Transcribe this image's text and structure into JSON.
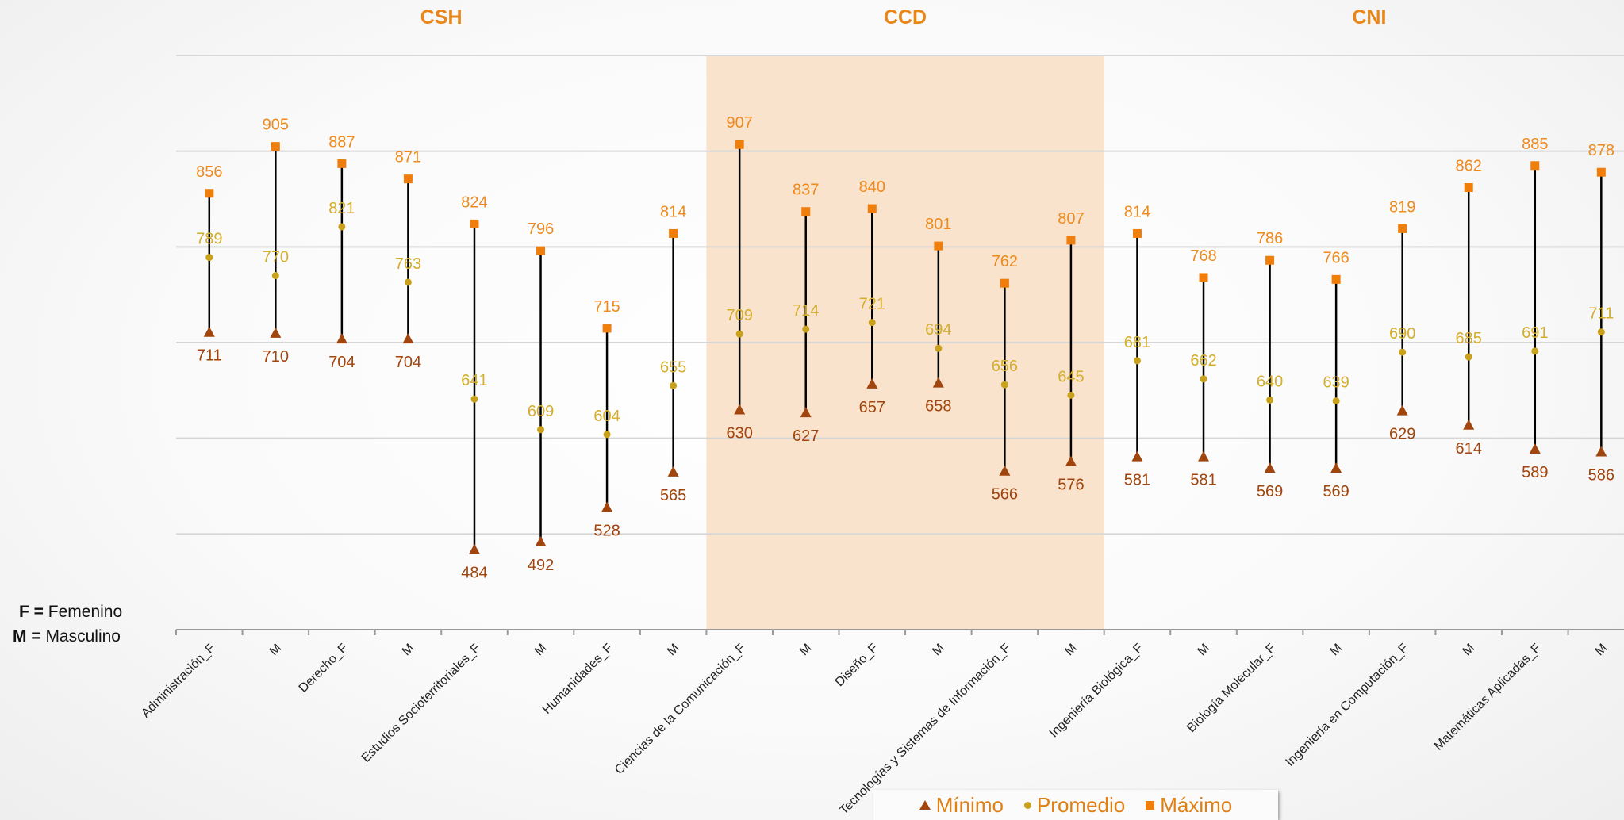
{
  "chart_data": {
    "type": "hilo",
    "groups": [
      {
        "label": "CSH",
        "start": 0,
        "end": 7,
        "color": "#E8861A"
      },
      {
        "label": "CCD",
        "start": 8,
        "end": 13,
        "color": "#E8861A"
      },
      {
        "label": "CNI",
        "start": 14,
        "end": 21,
        "color": "#E8861A"
      }
    ],
    "highlight_group": "CCD",
    "highlight_color": "#F9E3CC",
    "categories": [
      "Administración_F",
      "M",
      "Derecho_F",
      "M",
      "Estudios Socioterritoriales_F",
      "M",
      "Humanidades_F",
      "M",
      "Ciencias de la Comunicación_F",
      "M",
      "Diseño_F",
      "M",
      "Tecnologías y Sistemas de Información_F",
      "M",
      "Ingeniería Biológica_F",
      "M",
      "Biología Molecular_F",
      "M",
      "Ingeniería en Computación_F",
      "M",
      "Matemáticas Aplicadas_F",
      "M"
    ],
    "series": [
      {
        "name": "Mínimo",
        "color": "#A0450D",
        "marker": "triangle",
        "values": [
          711,
          710,
          704,
          704,
          484,
          492,
          528,
          565,
          630,
          627,
          657,
          658,
          566,
          576,
          581,
          581,
          569,
          569,
          629,
          614,
          589,
          586
        ]
      },
      {
        "name": "Promedio",
        "color": "#C9A11A",
        "marker": "circle",
        "values": [
          789,
          770,
          821,
          763,
          641,
          609,
          604,
          655,
          709,
          714,
          721,
          694,
          656,
          645,
          681,
          662,
          640,
          639,
          690,
          685,
          691,
          711
        ]
      },
      {
        "name": "Máximo",
        "color": "#F07E0C",
        "marker": "square",
        "values": [
          856,
          905,
          887,
          871,
          824,
          796,
          715,
          814,
          907,
          837,
          840,
          801,
          762,
          807,
          814,
          768,
          786,
          766,
          819,
          862,
          885,
          878
        ]
      }
    ],
    "y_range": [
      400,
      1000
    ],
    "y_gridlines": [
      500,
      600,
      700,
      800,
      900,
      1000
    ],
    "grid": true,
    "legend_position": "bottom-center",
    "notes": [
      {
        "key": "F =",
        "text": "Femenino"
      },
      {
        "key": "M =",
        "text": "Masculino"
      }
    ]
  }
}
